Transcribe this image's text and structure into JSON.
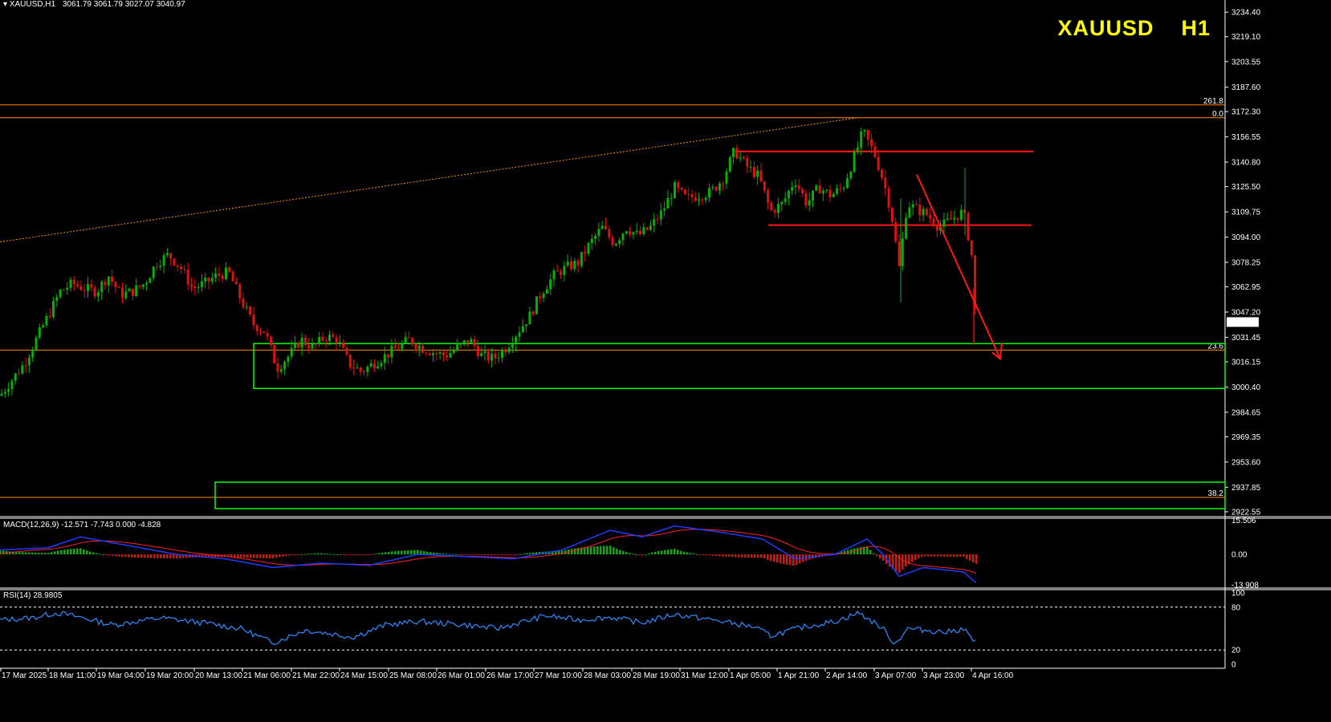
{
  "header": {
    "symbol_tf": "XAUUSD,H1",
    "ohlc": "3061.79 3061.79 3027.07 3040.97",
    "title_symbol": "XAUUSD",
    "title_tf": "H1"
  },
  "colors": {
    "background": "#000000",
    "bull": "#00b000",
    "bear": "#e01010",
    "fib": "#ff8c00",
    "zone": "#00ff00",
    "trend": "#ff1a1a",
    "macd_line": "#1f3cff",
    "signal_line": "#ff2020",
    "rsi_line": "#2f8cff",
    "title": "#ffff00"
  },
  "chart_data": [
    {
      "type": "candlestick",
      "title": "XAUUSD H1",
      "price_ticks": [
        "3234.40",
        "3219.10",
        "3203.55",
        "3187.60",
        "3172.30",
        "3156.55",
        "3140.80",
        "3125.50",
        "3109.75",
        "3094.00",
        "3078.25",
        "3062.95",
        "3047.20",
        "3031.45",
        "3016.15",
        "3000.40",
        "2984.65",
        "2969.35",
        "2953.60",
        "2937.85",
        "2922.55"
      ],
      "ylim": [
        2920.0,
        3242.0
      ],
      "current_price": "3040.97",
      "x_ticks": [
        "17 Mar 2025",
        "18 Mar 11:00",
        "19 Mar 04:00",
        "19 Mar 20:00",
        "20 Mar 13:00",
        "21 Mar 06:00",
        "21 Mar 22:00",
        "24 Mar 15:00",
        "25 Mar 08:00",
        "26 Mar 01:00",
        "26 Mar 17:00",
        "27 Mar 10:00",
        "28 Mar 03:00",
        "28 Mar 19:00",
        "31 Mar 12:00",
        "1 Apr 05:00",
        "1 Apr 21:00",
        "2 Apr 14:00",
        "3 Apr 07:00",
        "3 Apr 23:00",
        "4 Apr 16:00"
      ],
      "path": [
        [
          0,
          2995
        ],
        [
          15,
          3005
        ],
        [
          30,
          3015
        ],
        [
          45,
          3030
        ],
        [
          60,
          3045
        ],
        [
          75,
          3060
        ],
        [
          90,
          3065
        ],
        [
          105,
          3062
        ],
        [
          120,
          3060
        ],
        [
          135,
          3070
        ],
        [
          150,
          3058
        ],
        [
          165,
          3060
        ],
        [
          180,
          3065
        ],
        [
          195,
          3078
        ],
        [
          210,
          3083
        ],
        [
          225,
          3075
        ],
        [
          240,
          3062
        ],
        [
          255,
          3065
        ],
        [
          270,
          3070
        ],
        [
          285,
          3072
        ],
        [
          300,
          3055
        ],
        [
          315,
          3040
        ],
        [
          330,
          3035
        ],
        [
          345,
          3012
        ],
        [
          360,
          3020
        ],
        [
          375,
          3030
        ],
        [
          390,
          3025
        ],
        [
          405,
          3032
        ],
        [
          420,
          3030
        ],
        [
          435,
          3015
        ],
        [
          450,
          3010
        ],
        [
          465,
          3015
        ],
        [
          480,
          3020
        ],
        [
          495,
          3025
        ],
        [
          510,
          3030
        ],
        [
          525,
          3025
        ],
        [
          540,
          3022
        ],
        [
          555,
          3020
        ],
        [
          570,
          3025
        ],
        [
          585,
          3030
        ],
        [
          600,
          3020
        ],
        [
          615,
          3018
        ],
        [
          630,
          3025
        ],
        [
          645,
          3035
        ],
        [
          660,
          3045
        ],
        [
          675,
          3060
        ],
        [
          690,
          3070
        ],
        [
          705,
          3075
        ],
        [
          720,
          3078
        ],
        [
          735,
          3090
        ],
        [
          750,
          3100
        ],
        [
          765,
          3090
        ],
        [
          780,
          3100
        ],
        [
          795,
          3095
        ],
        [
          810,
          3100
        ],
        [
          825,
          3110
        ],
        [
          840,
          3125
        ],
        [
          855,
          3118
        ],
        [
          870,
          3120
        ],
        [
          885,
          3122
        ],
        [
          900,
          3130
        ],
        [
          915,
          3148
        ],
        [
          930,
          3138
        ],
        [
          945,
          3132
        ],
        [
          960,
          3110
        ],
        [
          975,
          3115
        ],
        [
          990,
          3130
        ],
        [
          1005,
          3115
        ],
        [
          1020,
          3125
        ],
        [
          1035,
          3120
        ],
        [
          1050,
          3125
        ],
        [
          1065,
          3145
        ],
        [
          1075,
          3160
        ],
        [
          1090,
          3145
        ],
        [
          1100,
          3130
        ],
        [
          1110,
          3110
        ],
        [
          1120,
          3075
        ],
        [
          1130,
          3115
        ],
        [
          1140,
          3112
        ],
        [
          1155,
          3108
        ],
        [
          1170,
          3100
        ],
        [
          1185,
          3105
        ],
        [
          1200,
          3110
        ],
        [
          1210,
          3085
        ],
        [
          1215,
          3045
        ],
        [
          1218,
          3041
        ]
      ],
      "lines": {
        "fib_261_8": {
          "price": 3176.5,
          "label": "261.8"
        },
        "fib_0_0": {
          "price": 3168.5,
          "label": "0.0"
        },
        "fib_23_6": {
          "price": 3023.5,
          "label": "23.6"
        },
        "fib_38_2": {
          "price": 2931.5,
          "label": "38.2"
        }
      },
      "zones": [
        {
          "from": 2999.5,
          "to": 3027.5
        },
        {
          "from": 2924.5,
          "to": 2941.0
        }
      ],
      "resistance": [
        {
          "price": 3147.5
        },
        {
          "price": 3101.5
        }
      ]
    },
    {
      "type": "line",
      "title": "MACD(12,26,9) -12.571 -7.743 0.000 -4.828",
      "ticks": [
        "15.506",
        "0.00",
        "-13.908"
      ],
      "ylim": [
        -15.0,
        16.5
      ]
    },
    {
      "type": "line",
      "title": "RSI(14) 28.9805",
      "ticks": [
        "100",
        "80",
        "20",
        "0"
      ],
      "levels": [
        80,
        20
      ],
      "ylim": [
        0,
        100
      ]
    }
  ]
}
